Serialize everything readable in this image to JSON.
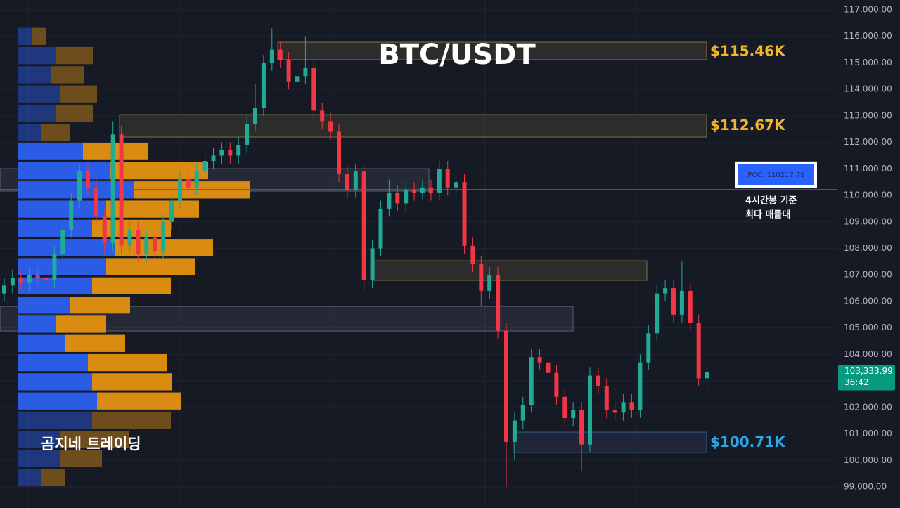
{
  "chart_data": {
    "type": "candlestick",
    "title": "BTC/USDT",
    "watermark": "곰지네 트레이딩",
    "open": [
      106300,
      106600,
      106900,
      106700,
      107000,
      106900,
      106800,
      107800,
      108700,
      109800,
      110900,
      110300,
      109200,
      108200,
      112300,
      108100,
      108700,
      107800,
      108400,
      107900,
      109000,
      109800,
      110600,
      110300,
      110900,
      111300,
      111500,
      111700,
      111500,
      111900,
      112700,
      113300,
      115000,
      115500,
      115100,
      114300,
      114500,
      114800,
      113200,
      112800,
      112400,
      110800,
      110200,
      110900,
      106800,
      108000,
      109500,
      110100,
      109700,
      110200,
      110100,
      110300,
      110100,
      111000,
      110300,
      110500,
      108100,
      107400,
      106400,
      107000,
      104900,
      100700,
      101500,
      102100,
      103900,
      103700,
      103300,
      102400,
      101600,
      101900,
      100600,
      103200,
      102800,
      101900,
      101800,
      102200,
      101900,
      103700,
      104800,
      106300,
      106500,
      105500,
      106400,
      105200,
      103100
    ],
    "high": [
      106900,
      107200,
      107200,
      107300,
      107300,
      107200,
      108100,
      109000,
      110100,
      111200,
      111200,
      110600,
      109500,
      112800,
      112600,
      109000,
      109000,
      108700,
      108700,
      109300,
      110100,
      110900,
      110900,
      111200,
      111600,
      111800,
      112000,
      112000,
      112200,
      113000,
      114200,
      115300,
      116300,
      115800,
      115400,
      114800,
      116000,
      115100,
      113500,
      113100,
      112700,
      111100,
      111200,
      111200,
      108300,
      109800,
      110600,
      110400,
      110500,
      110500,
      110600,
      110600,
      111300,
      111300,
      110800,
      110800,
      108400,
      107700,
      107300,
      107300,
      105200,
      101800,
      102400,
      104200,
      104200,
      104000,
      103600,
      102700,
      102200,
      102200,
      103500,
      103500,
      103100,
      102200,
      102500,
      102500,
      104000,
      105100,
      106600,
      106800,
      106800,
      107500,
      106700,
      105500,
      103500
    ],
    "low": [
      106000,
      106300,
      106400,
      106400,
      106600,
      106500,
      106500,
      107500,
      108400,
      109500,
      110000,
      108900,
      107800,
      107900,
      107800,
      107800,
      107500,
      107500,
      107600,
      107600,
      108700,
      109500,
      110000,
      110000,
      110600,
      111000,
      111200,
      111200,
      111200,
      111600,
      112400,
      113000,
      114700,
      114800,
      114000,
      114000,
      114200,
      112900,
      112500,
      112100,
      110500,
      109900,
      109900,
      106400,
      106500,
      107700,
      109200,
      109400,
      109400,
      109800,
      109800,
      109800,
      109800,
      110000,
      110000,
      107800,
      107100,
      105800,
      106100,
      104600,
      99000,
      100000,
      101200,
      101800,
      103400,
      103000,
      102100,
      101300,
      101300,
      99600,
      100300,
      102500,
      101600,
      101500,
      101500,
      101600,
      101600,
      103400,
      104500,
      106000,
      105200,
      105200,
      104900,
      102800,
      102500
    ],
    "close": [
      106600,
      106900,
      106700,
      107000,
      106900,
      106800,
      107800,
      108700,
      109800,
      110900,
      110300,
      109200,
      108200,
      112300,
      108100,
      108700,
      107800,
      108400,
      107900,
      109000,
      109800,
      110600,
      110300,
      110900,
      111300,
      111500,
      111700,
      111500,
      111900,
      112700,
      113300,
      115000,
      115500,
      115100,
      114300,
      114500,
      114800,
      113200,
      112800,
      112400,
      110800,
      110200,
      110900,
      106800,
      108000,
      109500,
      110100,
      109700,
      110200,
      110100,
      110300,
      110100,
      111000,
      110300,
      110500,
      108100,
      107400,
      106400,
      107000,
      104900,
      100700,
      101500,
      102100,
      103900,
      103700,
      103300,
      102400,
      101600,
      101900,
      100600,
      103200,
      102800,
      101900,
      101800,
      102200,
      101900,
      103700,
      104800,
      106300,
      106500,
      105500,
      106400,
      105200,
      103100,
      103333.99
    ],
    "up_color": "#22ab94",
    "down_color": "#f23645",
    "ylim": [
      98205,
      117371
    ],
    "yticks": [
      {
        "value": 99000,
        "label": "99,000.00"
      },
      {
        "value": 100000,
        "label": "100,000.00"
      },
      {
        "value": 101000,
        "label": "101,000.00"
      },
      {
        "value": 102000,
        "label": "102,000.00"
      },
      {
        "value": 103000,
        "label": "103,000.00"
      },
      {
        "value": 104000,
        "label": "104,000.00"
      },
      {
        "value": 105000,
        "label": "105,000.00"
      },
      {
        "value": 106000,
        "label": "106,000.00"
      },
      {
        "value": 107000,
        "label": "107,000.00"
      },
      {
        "value": 108000,
        "label": "108,000.00"
      },
      {
        "value": 109000,
        "label": "109,000.00"
      },
      {
        "value": 110000,
        "label": "110,000.00"
      },
      {
        "value": 111000,
        "label": "111,000.00"
      },
      {
        "value": 112000,
        "label": "112,000.00"
      },
      {
        "value": 113000,
        "label": "113,000.00"
      },
      {
        "value": 114000,
        "label": "114,000.00"
      },
      {
        "value": 115000,
        "label": "115,000.00"
      },
      {
        "value": 116000,
        "label": "116,000.00"
      },
      {
        "value": 117000,
        "label": "117,000.00"
      }
    ],
    "grid": true,
    "volume_profile": {
      "bins": [
        116360,
        115636,
        114912,
        114188,
        113464,
        112740,
        112016,
        111292,
        110568,
        109844,
        109120,
        108396,
        107672,
        106948,
        106224,
        105500,
        104776,
        104052,
        103328,
        102604,
        101880,
        101156,
        100432,
        99708,
        98984
      ],
      "buy": [
        20,
        53,
        46,
        60,
        53,
        33,
        92,
        131,
        164,
        125,
        105,
        138,
        125,
        105,
        73,
        53,
        66,
        99,
        105,
        112,
        105,
        60,
        60,
        33
      ],
      "sell": [
        20,
        53,
        47,
        52,
        53,
        40,
        93,
        139,
        165,
        132,
        112,
        139,
        126,
        112,
        86,
        72,
        86,
        112,
        113,
        119,
        112,
        98,
        59,
        33
      ],
      "buy_color": "#2b5ce6",
      "sell_color": "#d98b12",
      "value_area": [
        101880,
        112016
      ]
    },
    "zones": [
      {
        "range": [
          115118,
          115780
        ],
        "color": "#c9b458"
      },
      {
        "range": [
          112200,
          113050
        ],
        "color": "#c9b458"
      },
      {
        "range": [
          110160,
          111008
        ],
        "color": "#8a9bb0"
      },
      {
        "range": [
          106793,
          107535
        ],
        "color": "#c9b458"
      },
      {
        "range": [
          104884,
          105812
        ],
        "color": "#8a9bb0"
      },
      {
        "range": [
          100298,
          101067
        ],
        "color": "#5a86c8"
      }
    ],
    "level_labels": [
      {
        "value": 115460,
        "label": "$115.46K",
        "color": "#f5b529"
      },
      {
        "value": 112670,
        "label": "$112.67K",
        "color": "#f5b529"
      },
      {
        "value": 100710,
        "label": "$100.71K",
        "color": "#2ea7e8"
      }
    ],
    "poc": {
      "value": 110217.79,
      "label": "POC: 110217.79",
      "note": [
        "4시간봉 기준",
        "최다 매물대"
      ],
      "color": "#e0262b"
    },
    "last_price": {
      "value": 103333.99,
      "label": "103,333.99",
      "countdown": "36:42",
      "color": "#089981"
    }
  }
}
